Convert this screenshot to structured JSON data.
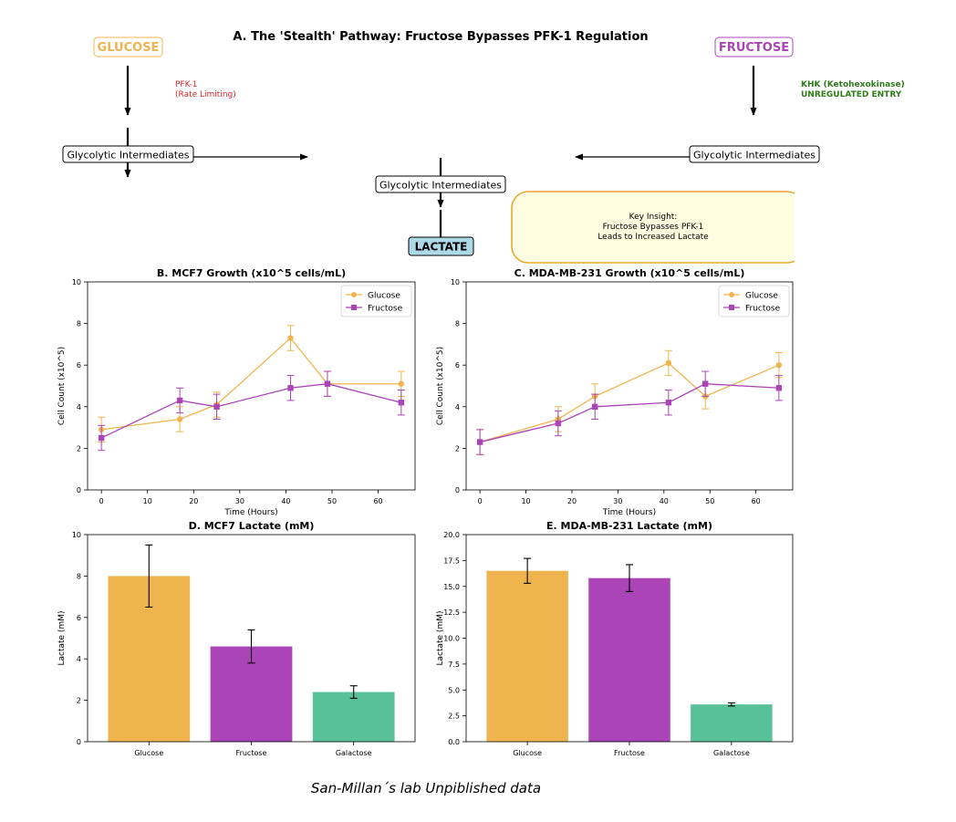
{
  "colors": {
    "glucose": "#F0B44F",
    "fructose": "#AB44B7",
    "galactose": "#59C19A",
    "lactate_fill": "#ADD8E6",
    "pfk_text": "#D62728",
    "khk_text": "#2E7D1A",
    "insight_fill": "#FFFDE0",
    "insight_edge": "#E8A838"
  },
  "panel_a": {
    "title": "A. The 'Stealth' Pathway: Fructose Bypasses PFK-1 Regulation",
    "glucose_label": "GLUCOSE",
    "fructose_label": "FRUCTOSE",
    "pfk_line1": "PFK-1",
    "pfk_line2": "(Rate Limiting)",
    "khk_line1": "KHK (Ketohexokinase)",
    "khk_line2": "UNREGULATED ENTRY",
    "intermediates_left": "Glycolytic Intermediates",
    "intermediates_right": "Glycolytic Intermediates",
    "intermediates_center": "Glycolytic Intermediates",
    "lactate_label": "LACTATE",
    "insight_line1": "Key Insight:",
    "insight_line2": "Fructose Bypasses PFK-1",
    "insight_line3": "Leads to Increased Lactate"
  },
  "chart_data": [
    {
      "type": "line",
      "title": "B. MCF7 Growth (x10^5 cells/mL)",
      "xlabel": "Time (Hours)",
      "ylabel": "Cell Count (x10^5)",
      "xlim": [
        -3,
        68
      ],
      "ylim": [
        0,
        10
      ],
      "xticks": [
        0,
        10,
        20,
        30,
        40,
        50,
        60
      ],
      "yticks": [
        0,
        2,
        4,
        6,
        8,
        10
      ],
      "legend": "top-right",
      "x": [
        0,
        17,
        25,
        41,
        49,
        65
      ],
      "series": [
        {
          "name": "Glucose",
          "marker": "circle",
          "values": [
            2.9,
            3.4,
            4.1,
            7.3,
            5.1,
            5.1
          ],
          "errors": [
            0.6,
            0.6,
            0.6,
            0.6,
            0.6,
            0.6
          ]
        },
        {
          "name": "Fructose",
          "marker": "square",
          "values": [
            2.5,
            4.3,
            4.0,
            4.9,
            5.1,
            4.2
          ],
          "errors": [
            0.6,
            0.6,
            0.6,
            0.6,
            0.6,
            0.6
          ]
        }
      ]
    },
    {
      "type": "line",
      "title": "C. MDA-MB-231 Growth (x10^5 cells/mL)",
      "xlabel": "Time (Hours)",
      "ylabel": "Cell Count (x10^5)",
      "xlim": [
        -3,
        68
      ],
      "ylim": [
        0,
        10
      ],
      "xticks": [
        0,
        10,
        20,
        30,
        40,
        50,
        60
      ],
      "yticks": [
        0,
        2,
        4,
        6,
        8,
        10
      ],
      "legend": "top-right",
      "x": [
        0,
        17,
        25,
        41,
        49,
        65
      ],
      "series": [
        {
          "name": "Glucose",
          "marker": "circle",
          "values": [
            2.3,
            3.4,
            4.5,
            6.1,
            4.5,
            6.0
          ],
          "errors": [
            0.6,
            0.6,
            0.6,
            0.6,
            0.6,
            0.6
          ]
        },
        {
          "name": "Fructose",
          "marker": "square",
          "values": [
            2.3,
            3.2,
            4.0,
            4.2,
            5.1,
            4.9
          ],
          "errors": [
            0.6,
            0.6,
            0.6,
            0.6,
            0.6,
            0.6
          ]
        }
      ]
    },
    {
      "type": "bar",
      "title": "D. MCF7 Lactate (mM)",
      "xlabel": "",
      "ylabel": "Lactate (mM)",
      "ylim": [
        0,
        10
      ],
      "yticks": [
        0,
        2,
        4,
        6,
        8,
        10
      ],
      "categories": [
        "Glucose",
        "Fructose",
        "Galactose"
      ],
      "values": [
        8.0,
        4.6,
        2.4
      ],
      "errors": [
        1.5,
        0.8,
        0.3
      ]
    },
    {
      "type": "bar",
      "title": "E. MDA-MB-231 Lactate (mM)",
      "xlabel": "",
      "ylabel": "Lactate (mM)",
      "ylim": [
        0,
        20
      ],
      "yticks": [
        0.0,
        2.5,
        5.0,
        7.5,
        10.0,
        12.5,
        15.0,
        17.5,
        20.0
      ],
      "ytick_labels": [
        "0.0",
        "2.5",
        "5.0",
        "7.5",
        "10.0",
        "12.5",
        "15.0",
        "17.5",
        "20.0"
      ],
      "categories": [
        "Glucose",
        "Fructose",
        "Galactose"
      ],
      "values": [
        16.5,
        15.8,
        3.6
      ],
      "errors": [
        1.2,
        1.3,
        0.15
      ]
    }
  ],
  "footer": "San-Millan´s lab Unpiblished data"
}
